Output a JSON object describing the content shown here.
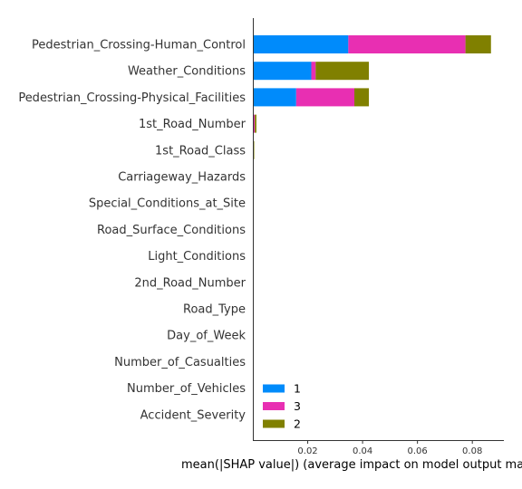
{
  "chart_data": {
    "type": "bar",
    "orientation": "horizontal",
    "stacked": true,
    "categories": [
      "Pedestrian_Crossing-Human_Control",
      "Weather_Conditions",
      "Pedestrian_Crossing-Physical_Facilities",
      "1st_Road_Number",
      "1st_Road_Class",
      "Carriageway_Hazards",
      "Special_Conditions_at_Site",
      "Road_Surface_Conditions",
      "Light_Conditions",
      "2nd_Road_Number",
      "Road_Type",
      "Day_of_Week",
      "Number_of_Casualties",
      "Number_of_Vehicles",
      "Accident_Severity"
    ],
    "series": [
      {
        "name": "1",
        "color": "#008bfb",
        "values": [
          0.0348,
          0.0213,
          0.0158,
          0.0002,
          0.0001,
          0,
          0,
          0,
          0,
          0,
          0,
          0,
          0,
          0,
          0
        ]
      },
      {
        "name": "3",
        "color": "#e82fb2",
        "values": [
          0.0427,
          0.0016,
          0.0212,
          0.0005,
          0.0002,
          0,
          0,
          0,
          0,
          0,
          0,
          0,
          0,
          0,
          0
        ]
      },
      {
        "name": "2",
        "color": "#808000",
        "values": [
          0.0093,
          0.0194,
          0.0053,
          0.0006,
          0.0002,
          0,
          0,
          0,
          0,
          0,
          0,
          0,
          0,
          0,
          0
        ]
      }
    ],
    "xlabel": "mean(|SHAP value|) (average impact on model output magnitude)",
    "xticks": [
      "0.02",
      "0.04",
      "0.06",
      "0.08"
    ],
    "xtick_values": [
      0.02,
      0.04,
      0.06,
      0.08
    ],
    "xlim": [
      0,
      0.0915
    ],
    "legend_position": "lower-left",
    "grid": false
  }
}
